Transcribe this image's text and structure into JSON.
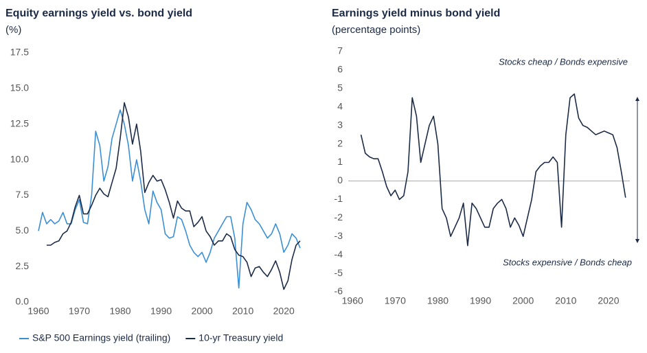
{
  "chart_data": [
    {
      "type": "line",
      "title": "Equity earnings yield vs. bond yield",
      "subtitle": "(%)",
      "x": [
        1960,
        1961,
        1962,
        1963,
        1964,
        1965,
        1966,
        1967,
        1968,
        1969,
        1970,
        1971,
        1972,
        1973,
        1974,
        1975,
        1976,
        1977,
        1978,
        1979,
        1980,
        1981,
        1982,
        1983,
        1984,
        1985,
        1986,
        1987,
        1988,
        1989,
        1990,
        1991,
        1992,
        1993,
        1994,
        1995,
        1996,
        1997,
        1998,
        1999,
        2000,
        2001,
        2002,
        2003,
        2004,
        2005,
        2006,
        2007,
        2008,
        2009,
        2010,
        2011,
        2012,
        2013,
        2014,
        2015,
        2016,
        2017,
        2018,
        2019,
        2020,
        2021,
        2022,
        2023,
        2024
      ],
      "series": [
        {
          "name": "S&P 500 Earnings yield (trailing)",
          "color": "#3a8fd4",
          "values": [
            5.0,
            6.3,
            5.5,
            5.8,
            5.5,
            5.7,
            6.3,
            5.5,
            5.5,
            6.5,
            7.2,
            5.6,
            5.5,
            7.5,
            12.0,
            11.0,
            8.5,
            9.5,
            11.5,
            12.5,
            13.5,
            12.5,
            11.0,
            8.5,
            10.0,
            8.5,
            6.5,
            5.5,
            7.8,
            7.0,
            6.5,
            4.8,
            4.5,
            4.6,
            6.0,
            5.8,
            5.0,
            4.0,
            3.5,
            3.2,
            3.5,
            2.8,
            3.5,
            4.5,
            5.0,
            5.5,
            6.0,
            6.0,
            4.5,
            1.0,
            5.5,
            7.0,
            6.5,
            5.8,
            5.5,
            5.0,
            4.5,
            4.8,
            5.5,
            4.8,
            3.5,
            4.0,
            4.8,
            4.5,
            3.8
          ]
        },
        {
          "name": "10-yr Treasury yield",
          "color": "#1b2a45",
          "values": [
            null,
            null,
            4.0,
            4.0,
            4.2,
            4.3,
            4.8,
            5.0,
            5.6,
            6.7,
            7.5,
            6.2,
            6.2,
            6.8,
            7.5,
            8.0,
            7.6,
            7.4,
            8.4,
            9.4,
            11.5,
            14.0,
            13.0,
            11.1,
            12.5,
            10.6,
            7.7,
            8.4,
            8.9,
            8.5,
            8.6,
            7.9,
            7.0,
            5.9,
            7.1,
            6.6,
            6.4,
            6.4,
            5.3,
            5.6,
            6.0,
            5.0,
            4.6,
            4.0,
            4.3,
            4.3,
            4.8,
            4.6,
            3.7,
            3.3,
            3.2,
            2.8,
            1.8,
            2.4,
            2.5,
            2.1,
            1.8,
            2.3,
            2.9,
            2.1,
            0.9,
            1.5,
            3.0,
            4.0,
            4.3
          ]
        }
      ],
      "xlim": [
        1959,
        2025
      ],
      "xticks": [
        1960,
        1970,
        1980,
        1990,
        2000,
        2010,
        2020
      ],
      "ylim": [
        0,
        17.5
      ],
      "yticks": [
        {
          "value": 0,
          "label": "0.0"
        },
        2.5,
        {
          "value": 5,
          "label": "5.0"
        },
        7.5,
        {
          "value": 10,
          "label": "10.0"
        },
        12.5,
        {
          "value": 15,
          "label": "15.0"
        },
        17.5
      ],
      "legend": "bottom"
    },
    {
      "type": "line",
      "title": "Earnings yield minus bond yield",
      "subtitle": "(percentage points)",
      "x": [
        1962,
        1963,
        1964,
        1965,
        1966,
        1967,
        1968,
        1969,
        1970,
        1971,
        1972,
        1973,
        1974,
        1975,
        1976,
        1977,
        1978,
        1979,
        1980,
        1981,
        1982,
        1983,
        1984,
        1985,
        1986,
        1987,
        1988,
        1989,
        1990,
        1991,
        1992,
        1993,
        1994,
        1995,
        1996,
        1997,
        1998,
        1999,
        2000,
        2001,
        2002,
        2003,
        2004,
        2005,
        2006,
        2007,
        2008,
        2009,
        2010,
        2011,
        2012,
        2013,
        2014,
        2015,
        2016,
        2017,
        2018,
        2019,
        2020,
        2021,
        2022,
        2023,
        2024
      ],
      "series": [
        {
          "name": "Earnings yield minus bond yield",
          "color": "#1b2a45",
          "values": [
            2.5,
            1.5,
            1.3,
            1.2,
            1.2,
            0.5,
            -0.3,
            -0.8,
            -0.5,
            -1.0,
            -0.8,
            0.5,
            4.5,
            3.5,
            1.0,
            2.0,
            3.0,
            3.5,
            2.0,
            -1.5,
            -2.0,
            -3.0,
            -2.5,
            -2.0,
            -1.2,
            -3.5,
            -1.2,
            -1.5,
            -2.0,
            -2.5,
            -2.5,
            -1.5,
            -1.2,
            -1.0,
            -1.5,
            -2.5,
            -2.0,
            -2.4,
            -3.0,
            -2.0,
            -1.0,
            0.5,
            0.8,
            1.0,
            1.0,
            1.3,
            1.0,
            -2.5,
            2.5,
            4.5,
            4.7,
            3.4,
            3.0,
            2.9,
            2.7,
            2.5,
            2.6,
            2.7,
            2.6,
            2.5,
            1.8,
            0.5,
            -0.9
          ]
        }
      ],
      "xlim": [
        1959,
        2025
      ],
      "xticks": [
        1960,
        1970,
        1980,
        1990,
        2000,
        2010,
        2020
      ],
      "ylim": [
        -6,
        7
      ],
      "yticks": [
        -6,
        -5,
        -4,
        -3,
        -2,
        -1,
        0,
        1,
        2,
        3,
        4,
        5,
        6,
        7
      ],
      "annotations": [
        "Stocks cheap / Bonds expensive",
        "Stocks expensive / Bonds cheap"
      ]
    }
  ]
}
